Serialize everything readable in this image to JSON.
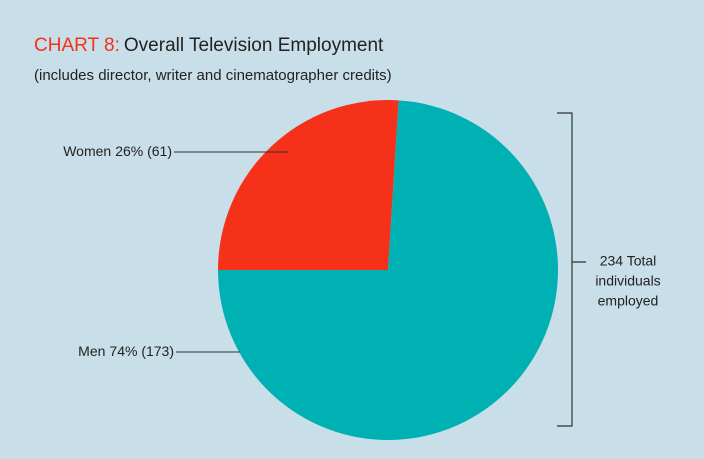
{
  "chart_data": {
    "type": "pie",
    "chart_label": "CHART 8:",
    "title": "Overall Television Employment",
    "subtitle": "(includes director, writer and cinematographer credits)",
    "categories": [
      "Women",
      "Men"
    ],
    "values": [
      26,
      74
    ],
    "value_labels": [
      "26% (61)",
      "74% (173)"
    ],
    "colors": [
      "#f53119",
      "#00b1b3"
    ],
    "annotation": [
      "234 Total",
      "individuals",
      "employed"
    ]
  }
}
